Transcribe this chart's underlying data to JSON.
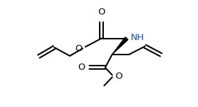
{
  "bg_color": "#ffffff",
  "bond_color": "#000000",
  "bond_lw": 1.5,
  "fig_w": 2.86,
  "fig_h": 1.55,
  "dpi": 100,
  "xlim": [
    0,
    286
  ],
  "ylim": [
    0,
    155
  ]
}
